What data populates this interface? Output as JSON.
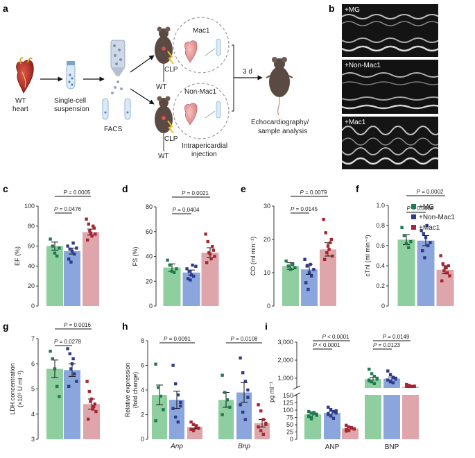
{
  "panels": {
    "a": "a",
    "b": "b",
    "c": "c",
    "d": "d",
    "e": "e",
    "f": "f",
    "g": "g",
    "h": "h",
    "i": "i"
  },
  "schematic": {
    "wt_heart_1": "WT",
    "wt_heart_2": "heart",
    "single_cell_1": "Single-cell",
    "single_cell_2": "suspension",
    "facs": "FACS",
    "mac1": "Mac1",
    "non_mac1": "Non-Mac1",
    "clp_top": "CLP",
    "clp_bottom": "CLP",
    "wt_top": "WT",
    "wt_bottom": "WT",
    "intrapericardial_1": "Intrapericardial",
    "intrapericardial_2": "injection",
    "three_d": "3 d",
    "echo_1": "Echocardiography/",
    "echo_2": "sample analysis"
  },
  "echo_labels": [
    "+MG",
    "+Non-Mac1",
    "+Mac1"
  ],
  "legend": {
    "items": [
      {
        "label": "+MG",
        "color": "#1e7a4f"
      },
      {
        "label": "+Non-Mac1",
        "color": "#2e3a8c"
      },
      {
        "label": "+Mac1",
        "color": "#a8242e"
      }
    ]
  },
  "colors": {
    "bar_mg": "#8fcf9f",
    "bar_nonmac": "#8aa6dc",
    "bar_mac": "#dea6ab",
    "dot_mg": "#1e7a4f",
    "dot_nonmac": "#2e3a8c",
    "dot_mac": "#a8242e"
  },
  "chart_data": [
    {
      "panel": "c",
      "type": "bar",
      "ylabel": "EF (%)",
      "ylim": [
        0,
        100
      ],
      "yticks": [
        "0",
        "20",
        "40",
        "60",
        "80",
        "100"
      ],
      "series": [
        {
          "name": "+MG",
          "mean": 60,
          "sem": 4,
          "points": [
            67,
            60,
            53,
            50,
            58
          ]
        },
        {
          "name": "+Non-Mac1",
          "mean": 55,
          "sem": 3,
          "points": [
            60,
            57,
            55,
            52,
            58,
            47,
            44,
            63
          ]
        },
        {
          "name": "+Mac1",
          "mean": 74,
          "sem": 3,
          "points": [
            87,
            82,
            73,
            80,
            72,
            66,
            75,
            70,
            78
          ]
        }
      ],
      "brackets": [
        {
          "from": 0,
          "to": 2,
          "p": "0.0005"
        },
        {
          "from": 0,
          "to": 1,
          "p": "0.0476"
        }
      ]
    },
    {
      "panel": "d",
      "type": "bar",
      "ylabel": "FS (%)",
      "ylim": [
        0,
        80
      ],
      "yticks": [
        "0",
        "20",
        "40",
        "60",
        "80"
      ],
      "series": [
        {
          "name": "+MG",
          "mean": 31,
          "sem": 3,
          "points": [
            37,
            33,
            28,
            27,
            30
          ]
        },
        {
          "name": "+Non-Mac1",
          "mean": 27,
          "sem": 2,
          "points": [
            30,
            28,
            25,
            24,
            32,
            22,
            21,
            33
          ]
        },
        {
          "name": "+Mac1",
          "mean": 43,
          "sem": 4,
          "points": [
            58,
            52,
            42,
            48,
            40,
            35,
            43,
            38,
            45
          ]
        }
      ],
      "brackets": [
        {
          "from": 0,
          "to": 2,
          "p": "0.0021"
        },
        {
          "from": 0,
          "to": 1,
          "p": "0.0404"
        }
      ]
    },
    {
      "panel": "e",
      "type": "bar",
      "ylabel": "CO (ml min⁻¹)",
      "ylim": [
        0,
        30
      ],
      "yticks": [
        "0",
        "10",
        "20",
        "30"
      ],
      "series": [
        {
          "name": "+MG",
          "mean": 12,
          "sem": 1,
          "points": [
            13.5,
            12,
            11,
            12.5,
            11.5
          ]
        },
        {
          "name": "+Non-Mac1",
          "mean": 11,
          "sem": 1.5,
          "points": [
            14,
            12,
            10,
            9,
            11,
            7,
            5,
            12.5
          ]
        },
        {
          "name": "+Mac1",
          "mean": 17,
          "sem": 2,
          "points": [
            26,
            22,
            18,
            19,
            15,
            14,
            16,
            17,
            20
          ]
        }
      ],
      "brackets": [
        {
          "from": 0,
          "to": 2,
          "p": "0.0079"
        },
        {
          "from": 0,
          "to": 1,
          "p": "0.0145"
        }
      ]
    },
    {
      "panel": "f",
      "type": "bar",
      "ylabel": "cTnI (ml min⁻¹)",
      "ylim": [
        0,
        1.0
      ],
      "yticks": [
        "0",
        "0.2",
        "0.4",
        "0.6",
        "0.8",
        "1.0"
      ],
      "series": [
        {
          "name": "+MG",
          "mean": 0.66,
          "sem": 0.05,
          "points": [
            0.78,
            0.7,
            0.62,
            0.58,
            0.64
          ]
        },
        {
          "name": "+Non-Mac1",
          "mean": 0.65,
          "sem": 0.05,
          "points": [
            0.75,
            0.72,
            0.68,
            0.6,
            0.63,
            0.55,
            0.48,
            0.8
          ]
        },
        {
          "name": "+Mac1",
          "mean": 0.36,
          "sem": 0.04,
          "points": [
            0.5,
            0.42,
            0.38,
            0.33,
            0.3,
            0.25,
            0.35,
            0.38,
            0.4
          ]
        }
      ],
      "brackets": [
        {
          "from": 0,
          "to": 2,
          "p": "0.0002"
        },
        {
          "from": 0,
          "to": 1,
          "p": "0.0088"
        }
      ]
    },
    {
      "panel": "g",
      "type": "bar",
      "ylabel": "LDH concentration",
      "ylabel2": "(×10³ U ml⁻¹)",
      "ylim": [
        3,
        7
      ],
      "yticks": [
        "3",
        "4",
        "5",
        "6",
        "7"
      ],
      "series": [
        {
          "name": "+MG",
          "mean": 5.8,
          "sem": 0.35,
          "points": [
            6.5,
            6.2,
            5.8,
            5.1,
            4.7
          ]
        },
        {
          "name": "+Non-Mac1",
          "mean": 5.75,
          "sem": 0.25,
          "points": [
            6.6,
            6.4,
            6.0,
            5.6,
            5.3,
            5.1,
            5.8,
            6.2
          ]
        },
        {
          "name": "+Mac1",
          "mean": 4.4,
          "sem": 0.2,
          "points": [
            5.3,
            4.9,
            4.6,
            4.3,
            4.1,
            3.8,
            4.5,
            4.2,
            4.4
          ]
        }
      ],
      "brackets": [
        {
          "from": 0,
          "to": 2,
          "p": "0.0016"
        },
        {
          "from": 0,
          "to": 1,
          "p": "0.0278"
        }
      ]
    },
    {
      "panel": "h",
      "type": "bar",
      "ylabel": "Relative expression",
      "ylabel2": "(fold change)",
      "ylim": [
        0,
        8
      ],
      "yticks": [
        "0",
        "2",
        "4",
        "6",
        "8"
      ],
      "categories": [
        "Anp",
        "Bnp"
      ],
      "groups": [
        {
          "category": "Anp",
          "series": [
            {
              "name": "+MG",
              "mean": 3.6,
              "sem": 0.8,
              "points": [
                6.1,
                4.2,
                3.5,
                2.4,
                1.5
              ]
            },
            {
              "name": "+Non-Mac1",
              "mean": 3.2,
              "sem": 0.7,
              "points": [
                6.0,
                4.5,
                3.6,
                3.0,
                2.5,
                1.8,
                1.4,
                2.7
              ]
            },
            {
              "name": "+Mac1",
              "mean": 1.0,
              "sem": 0.15,
              "points": [
                1.4,
                1.2,
                1.0,
                0.9,
                0.8,
                0.7,
                1.1,
                0.9
              ]
            }
          ]
        },
        {
          "category": "Bnp",
          "series": [
            {
              "name": "+MG",
              "mean": 3.2,
              "sem": 0.6,
              "points": [
                5.2,
                3.8,
                3.2,
                2.6,
                2.0
              ]
            },
            {
              "name": "+Non-Mac1",
              "mean": 3.8,
              "sem": 0.8,
              "points": [
                6.6,
                5.4,
                4.7,
                3.4,
                2.8,
                2.2,
                1.6,
                4.0
              ]
            },
            {
              "name": "+Mac1",
              "mean": 1.3,
              "sem": 0.3,
              "points": [
                2.8,
                2.3,
                1.6,
                1.2,
                1.0,
                0.7,
                0.4,
                1.3
              ]
            }
          ]
        }
      ],
      "brackets": [
        {
          "group": 0,
          "from": 0,
          "to": 2,
          "p": "0.0091"
        },
        {
          "group": 1,
          "from": 0,
          "to": 2,
          "p": "0.0108"
        }
      ]
    },
    {
      "panel": "i",
      "type": "bar",
      "ylabel": "pg ml⁻¹",
      "broken_axis": true,
      "lower_yticks": [
        "0",
        "25",
        "50",
        "75",
        "100",
        "125",
        "150"
      ],
      "upper_yticks": [
        "1,000",
        "2,000",
        "3,000"
      ],
      "categories": [
        "ANP",
        "BNP"
      ],
      "groups": [
        {
          "category": "ANP",
          "series": [
            {
              "name": "+MG",
              "mean": 85,
              "sem": 5,
              "points": [
                95,
                90,
                88,
                82,
                78,
                75,
                92,
                86,
                80,
                70
              ]
            },
            {
              "name": "+Non-Mac1",
              "mean": 90,
              "sem": 6,
              "points": [
                110,
                102,
                95,
                90,
                85,
                80,
                72,
                98,
                88
              ]
            },
            {
              "name": "+Mac1",
              "mean": 37,
              "sem": 3,
              "points": [
                48,
                42,
                38,
                36,
                33,
                30,
                40,
                35,
                28
              ]
            }
          ]
        },
        {
          "category": "BNP",
          "series": [
            {
              "name": "+MG",
              "mean": 950,
              "sem": 100,
              "points": [
                1500,
                1250,
                1100,
                950,
                850,
                800,
                700,
                1000,
                900
              ]
            },
            {
              "name": "+Non-Mac1",
              "mean": 980,
              "sem": 90,
              "points": [
                1400,
                1200,
                1050,
                950,
                900,
                800,
                750,
                1000
              ]
            },
            {
              "name": "+Mac1",
              "mean": 520,
              "sem": 40,
              "points": [
                650,
                600,
                550,
                500,
                480,
                450,
                520,
                560
              ]
            }
          ]
        }
      ],
      "brackets": [
        {
          "group": 0,
          "from": 0,
          "to": 2,
          "p": "< 0.0001"
        },
        {
          "group": 0,
          "from": 0,
          "to": 1,
          "p": "< 0.0001"
        },
        {
          "group": 1,
          "from": 0,
          "to": 2,
          "p": "0.0149"
        },
        {
          "group": 1,
          "from": 0,
          "to": 1,
          "p": "0.0123"
        }
      ]
    }
  ]
}
